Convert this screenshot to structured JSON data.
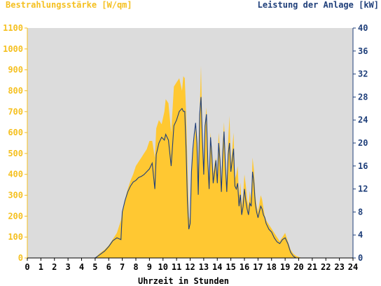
{
  "chart_data": {
    "type": "area",
    "title": "",
    "xlabel": "Uhrzeit in Stunden",
    "ylabel_left": "Bestrahlungsstärke [W/qm]",
    "ylabel_right": "Leistung der Anlage [kW]",
    "xlim": [
      0,
      24
    ],
    "ylim_left": [
      0,
      1100
    ],
    "ylim_right": [
      0,
      40
    ],
    "x_ticks": [
      "0",
      "1",
      "2",
      "3",
      "4",
      "5",
      "6",
      "7",
      "8",
      "9",
      "10",
      "11",
      "12",
      "13",
      "14",
      "15",
      "16",
      "17",
      "18",
      "19",
      "20",
      "21",
      "22",
      "23",
      "24"
    ],
    "y_left_ticks": [
      "0",
      "100",
      "200",
      "300",
      "400",
      "500",
      "600",
      "700",
      "800",
      "900",
      "1000",
      "1100"
    ],
    "y_right_ticks": [
      "0",
      "4",
      "8",
      "12",
      "16",
      "20",
      "24",
      "28",
      "32",
      "36",
      "40"
    ],
    "grid": false,
    "colors": {
      "plot_background": "#dcdcdc",
      "irradiance_fill": "#ffc832",
      "power_line": "#1f3f7a",
      "left_axis_text": "#f5c020",
      "right_axis_text": "#1f3f7a"
    },
    "series": [
      {
        "name": "Bestrahlungsstärke [W/qm]",
        "axis": "left",
        "kind": "area",
        "x": [
          0,
          5.0,
          5.3,
          5.7,
          6.0,
          6.3,
          6.6,
          6.9,
          7.0,
          7.2,
          7.4,
          7.6,
          7.8,
          8.0,
          8.2,
          8.4,
          8.6,
          8.8,
          9.0,
          9.2,
          9.4,
          9.5,
          9.7,
          9.9,
          10.1,
          10.2,
          10.4,
          10.6,
          10.8,
          11.0,
          11.2,
          11.4,
          11.5,
          11.6,
          11.7,
          11.8,
          11.9,
          12.0,
          12.1,
          12.2,
          12.3,
          12.4,
          12.5,
          12.6,
          12.7,
          12.8,
          12.9,
          13.0,
          13.1,
          13.2,
          13.3,
          13.4,
          13.5,
          13.6,
          13.7,
          13.8,
          13.9,
          14.0,
          14.1,
          14.2,
          14.3,
          14.4,
          14.5,
          14.6,
          14.7,
          14.8,
          14.9,
          15.0,
          15.1,
          15.2,
          15.3,
          15.4,
          15.5,
          15.6,
          15.7,
          15.8,
          15.9,
          16.0,
          16.1,
          16.2,
          16.3,
          16.4,
          16.5,
          16.6,
          16.7,
          16.8,
          16.9,
          17.0,
          17.1,
          17.2,
          17.3,
          17.4,
          17.5,
          17.6,
          17.8,
          18.0,
          18.2,
          18.4,
          18.6,
          18.8,
          19.0,
          19.2,
          19.4,
          19.6,
          19.8,
          20.0,
          20.2,
          20.5,
          24
        ],
        "y": [
          0,
          0,
          20,
          40,
          60,
          90,
          120,
          180,
          220,
          280,
          330,
          370,
          400,
          440,
          460,
          480,
          500,
          520,
          560,
          560,
          480,
          620,
          660,
          640,
          700,
          760,
          740,
          600,
          820,
          840,
          860,
          800,
          870,
          860,
          700,
          450,
          200,
          170,
          400,
          500,
          560,
          620,
          580,
          400,
          700,
          920,
          600,
          400,
          650,
          720,
          500,
          350,
          600,
          520,
          400,
          450,
          480,
          380,
          600,
          520,
          350,
          550,
          650,
          480,
          350,
          560,
          680,
          450,
          520,
          600,
          380,
          400,
          440,
          300,
          360,
          250,
          300,
          400,
          350,
          280,
          250,
          320,
          280,
          480,
          420,
          300,
          250,
          220,
          260,
          300,
          280,
          240,
          200,
          180,
          160,
          140,
          120,
          100,
          80,
          100,
          120,
          80,
          40,
          20,
          10,
          5,
          0,
          0,
          0
        ]
      },
      {
        "name": "Leistung der Anlage [kW]",
        "axis": "right",
        "kind": "line",
        "x": [
          0,
          5.0,
          5.3,
          5.7,
          6.0,
          6.3,
          6.6,
          6.9,
          7.0,
          7.2,
          7.4,
          7.6,
          7.8,
          8.0,
          8.2,
          8.4,
          8.6,
          8.8,
          9.0,
          9.2,
          9.4,
          9.5,
          9.7,
          9.9,
          10.1,
          10.2,
          10.4,
          10.6,
          10.8,
          11.0,
          11.2,
          11.4,
          11.5,
          11.6,
          11.7,
          11.8,
          11.9,
          12.0,
          12.1,
          12.2,
          12.3,
          12.4,
          12.5,
          12.6,
          12.7,
          12.8,
          12.9,
          13.0,
          13.1,
          13.2,
          13.3,
          13.4,
          13.5,
          13.6,
          13.7,
          13.8,
          13.9,
          14.0,
          14.1,
          14.2,
          14.3,
          14.4,
          14.5,
          14.6,
          14.7,
          14.8,
          14.9,
          15.0,
          15.1,
          15.2,
          15.3,
          15.4,
          15.5,
          15.6,
          15.7,
          15.8,
          15.9,
          16.0,
          16.1,
          16.2,
          16.3,
          16.4,
          16.5,
          16.6,
          16.7,
          16.8,
          16.9,
          17.0,
          17.1,
          17.2,
          17.3,
          17.4,
          17.5,
          17.6,
          17.8,
          18.0,
          18.2,
          18.4,
          18.6,
          18.8,
          19.0,
          19.2,
          19.4,
          19.6,
          19.8,
          20.0,
          20.2,
          20.5,
          24
        ],
        "y": [
          0,
          0,
          0.5,
          1.2,
          2.0,
          3.0,
          3.5,
          3.2,
          8.0,
          10.0,
          11.5,
          12.5,
          13.2,
          13.5,
          14.0,
          14.2,
          14.5,
          15.0,
          15.5,
          16.5,
          12.0,
          18.0,
          20.0,
          21.0,
          20.5,
          21.5,
          20.5,
          16.0,
          23.0,
          24.0,
          25.5,
          26.0,
          25.5,
          25.5,
          19.0,
          10.0,
          5.0,
          6.0,
          15.0,
          19.0,
          21.5,
          23.5,
          20.0,
          11.0,
          25.0,
          28.0,
          21.0,
          14.5,
          23.0,
          25.0,
          17.0,
          12.0,
          21.0,
          18.0,
          13.0,
          15.0,
          17.0,
          13.0,
          20.0,
          17.0,
          11.5,
          18.0,
          22.0,
          16.0,
          11.5,
          18.0,
          20.0,
          15.0,
          17.0,
          19.0,
          12.5,
          12.0,
          13.0,
          9.0,
          11.0,
          7.5,
          9.0,
          12.0,
          10.0,
          8.5,
          7.5,
          9.5,
          9.0,
          15.0,
          13.0,
          9.5,
          8.0,
          7.0,
          8.0,
          9.0,
          8.5,
          7.5,
          7.0,
          6.0,
          5.0,
          4.5,
          3.5,
          2.8,
          2.5,
          3.2,
          3.5,
          2.5,
          1.0,
          0.3,
          0,
          0,
          0,
          0,
          0
        ]
      }
    ]
  }
}
